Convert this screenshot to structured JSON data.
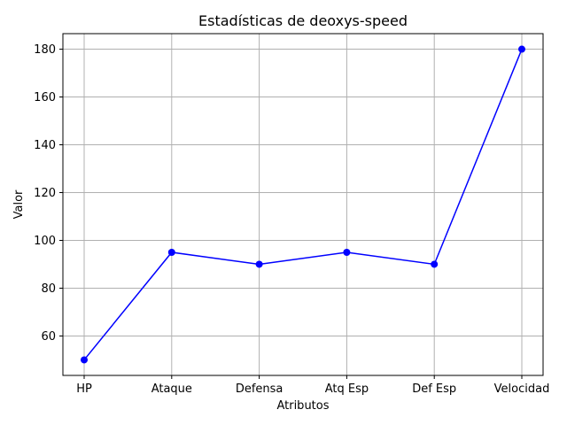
{
  "chart_data": {
    "type": "line",
    "title": "Estadísticas de deoxys-speed",
    "xlabel": "Atributos",
    "ylabel": "Valor",
    "categories": [
      "HP",
      "Ataque",
      "Defensa",
      "Atq Esp",
      "Def Esp",
      "Velocidad"
    ],
    "series": [
      {
        "values": [
          50,
          95,
          90,
          95,
          90,
          180
        ]
      }
    ],
    "yticks": [
      60,
      80,
      100,
      120,
      140,
      160,
      180
    ],
    "ylim": [
      43.5,
      186.5
    ],
    "grid": true,
    "line_color": "#0000ff",
    "marker": "circle"
  }
}
